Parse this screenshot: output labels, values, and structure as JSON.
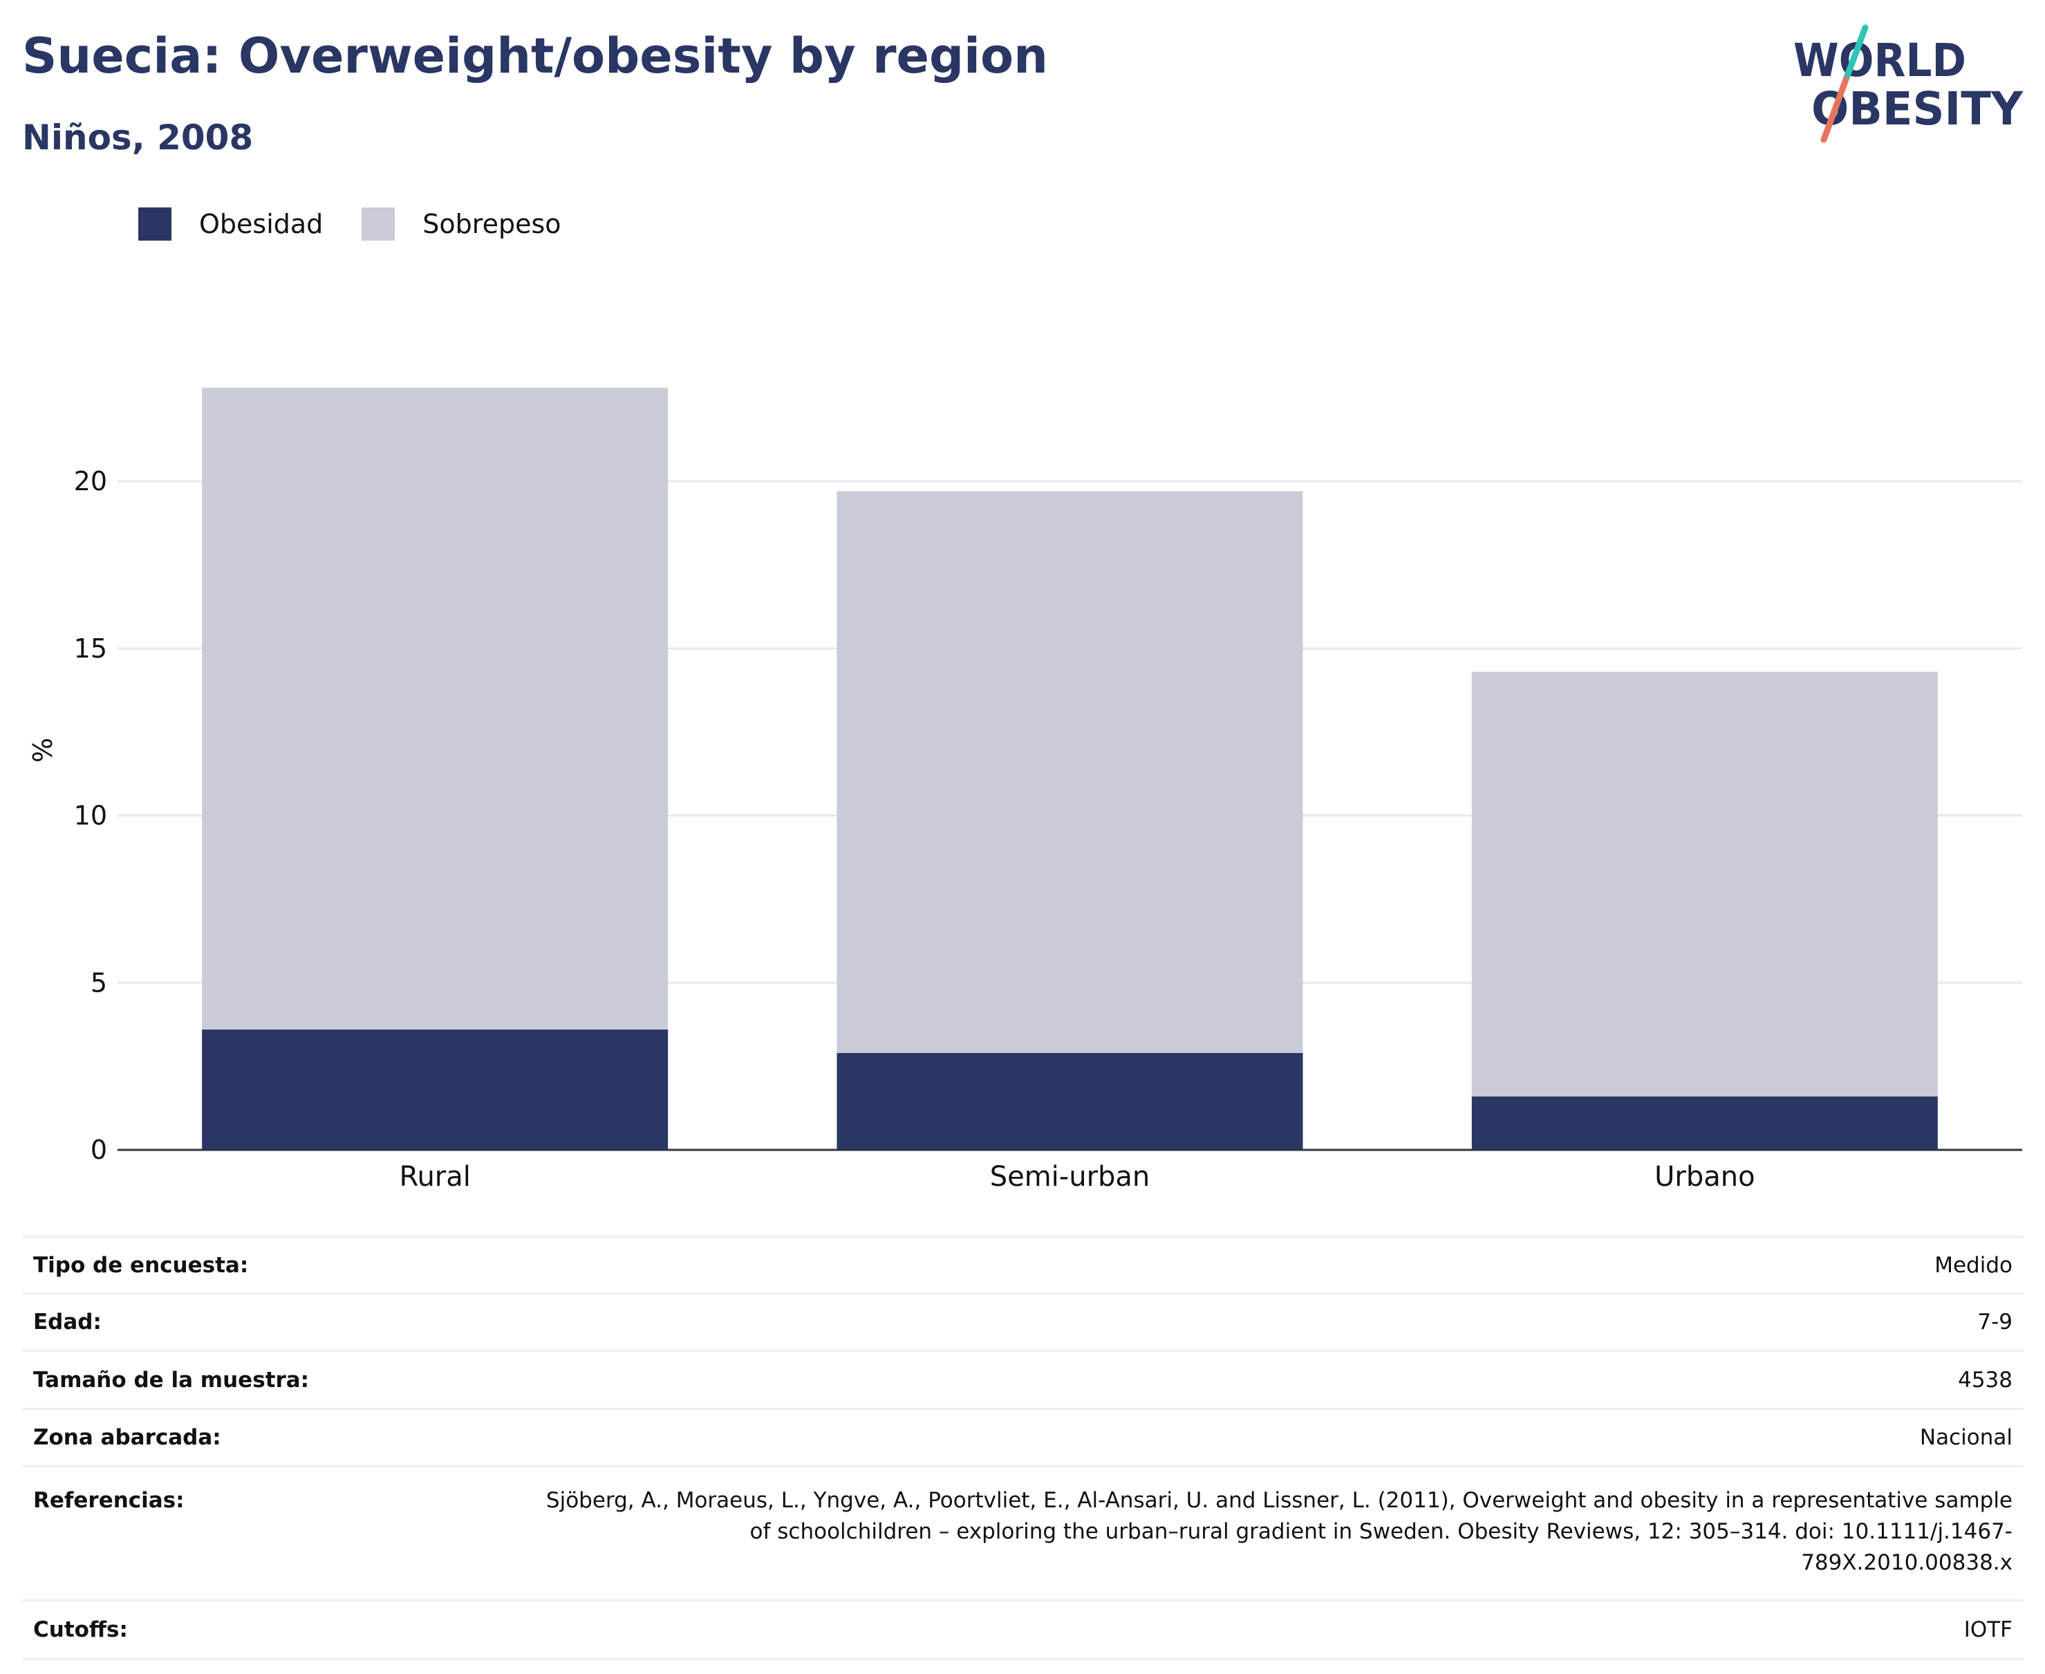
{
  "header": {
    "title": "Suecia: Overweight/obesity by region",
    "subtitle": "Niños, 2008"
  },
  "logo": {
    "line1": "WORLD",
    "line2": "OBESITY",
    "colors": {
      "text": "#2a3663",
      "slash_teal": "#2ec4b6",
      "slash_coral": "#e8745e"
    }
  },
  "colors": {
    "obesidad": "#2a3663",
    "sobrepeso": "#c9cbd7",
    "grid": "#e6e8ee",
    "axis": "#2f3440"
  },
  "legend": {
    "items": [
      {
        "label": "Obesidad",
        "color": "#2a3663"
      },
      {
        "label": "Sobrepeso",
        "color": "#c9cbd7"
      }
    ],
    "placement": "top-left"
  },
  "chart_data": {
    "type": "bar",
    "stacked": true,
    "categories": [
      "Rural",
      "Semi-urban",
      "Urbano"
    ],
    "series": [
      {
        "name": "Obesidad",
        "values": [
          3.6,
          2.9,
          1.6
        ]
      },
      {
        "name": "Sobrepeso",
        "values": [
          19.2,
          16.8,
          12.7
        ]
      }
    ],
    "ylabel": "%",
    "xlabel": "",
    "yticks": [
      0,
      5,
      10,
      15,
      20
    ],
    "ylim": [
      0,
      23
    ],
    "grid": true
  },
  "details": [
    {
      "label": "Tipo de encuesta:",
      "value": "Medido"
    },
    {
      "label": "Edad:",
      "value": "7-9"
    },
    {
      "label": "Tamaño de la muestra:",
      "value": "4538"
    },
    {
      "label": "Zona abarcada:",
      "value": "Nacional"
    },
    {
      "label": "Referencias:",
      "value": "Sjöberg, A., Moraeus, L., Yngve, A., Poortvliet, E., Al-Ansari, U. and Lissner, L. (2011), Overweight and obesity in a representative sample of schoolchildren – exploring the urban–rural gradient in Sweden. Obesity Reviews, 12: 305–314. doi: 10.1111/j.1467-789X.2010.00838.x"
    },
    {
      "label": "Cutoffs:",
      "value": "IOTF"
    }
  ]
}
